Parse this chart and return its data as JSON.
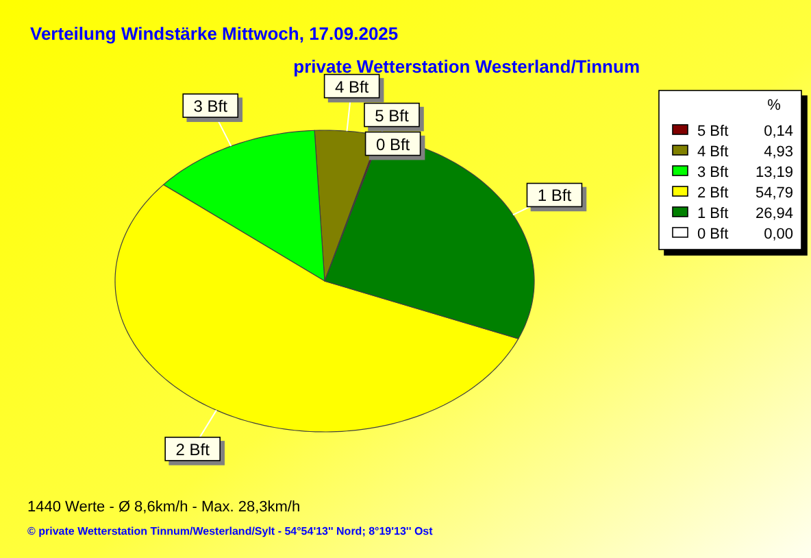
{
  "chart_data": {
    "type": "pie",
    "title": "Verteilung Windstärke  Mittwoch, 17.09.2025",
    "subtitle": "private Wetterstation Westerland/Tinnum",
    "legend_title": "%",
    "legend": "right",
    "categories": [
      "5 Bft",
      "4 Bft",
      "3 Bft",
      "2 Bft",
      "1 Bft",
      "0 Bft"
    ],
    "values": [
      0.14,
      4.93,
      13.19,
      54.79,
      26.94,
      0.0
    ],
    "value_labels": [
      "0,14",
      "4,93",
      "13,19",
      "54,79",
      "26,94",
      "0,00"
    ],
    "colors": [
      "#800000",
      "#808000",
      "#00ff00",
      "#ffff00",
      "#008000",
      "#ffffff"
    ],
    "annotations": [
      "1440 Werte   -   Ø 8,6km/h  -  Max. 28,3km/h",
      "© private Wetterstation Tinnum/Westerland/Sylt   -   54°54'13'' Nord; 8°19'13'' Ost"
    ]
  }
}
